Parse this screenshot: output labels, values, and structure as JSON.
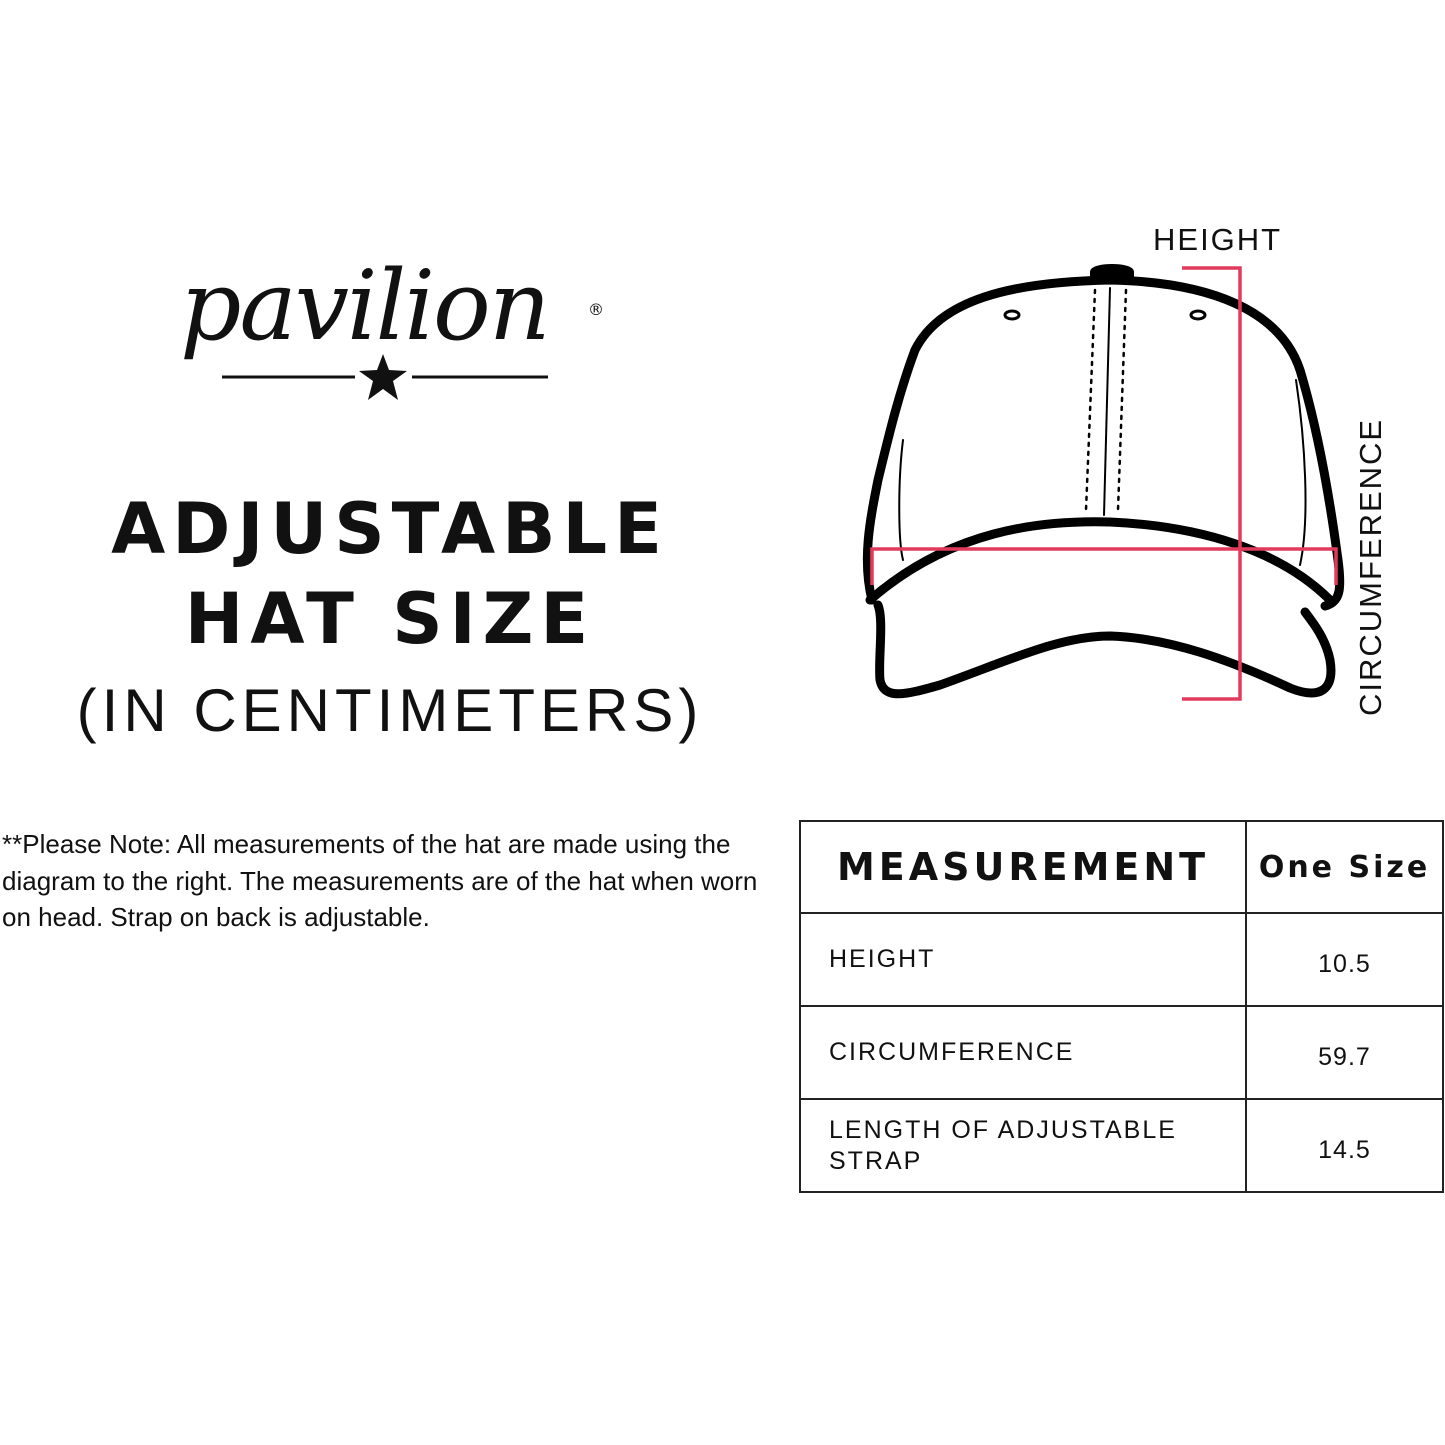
{
  "logo": {
    "brand": "pavilion",
    "registered": "®",
    "icon": "star-icon"
  },
  "title": {
    "line1": "ADJUSTABLE",
    "line2": "HAT SIZE",
    "line3": "(IN CENTIMETERS)"
  },
  "note": "**Please Note:  All measurements of the hat are made using the diagram to the right.  The measurements are of the hat when worn on head. Strap on back is adjustable.",
  "diagram": {
    "height_label": "HEIGHT",
    "circumference_label": "CIRCUMFERENCE",
    "accent_color": "#e23a5c",
    "icon": "baseball-cap-icon"
  },
  "table": {
    "headers": [
      "MEASUREMENT",
      "One Size"
    ],
    "rows": [
      {
        "measurement": "HEIGHT",
        "value": "10.5"
      },
      {
        "measurement": "CIRCUMFERENCE",
        "value": "59.7"
      },
      {
        "measurement": "LENGTH OF ADJUSTABLE STRAP",
        "value": "14.5"
      }
    ]
  }
}
